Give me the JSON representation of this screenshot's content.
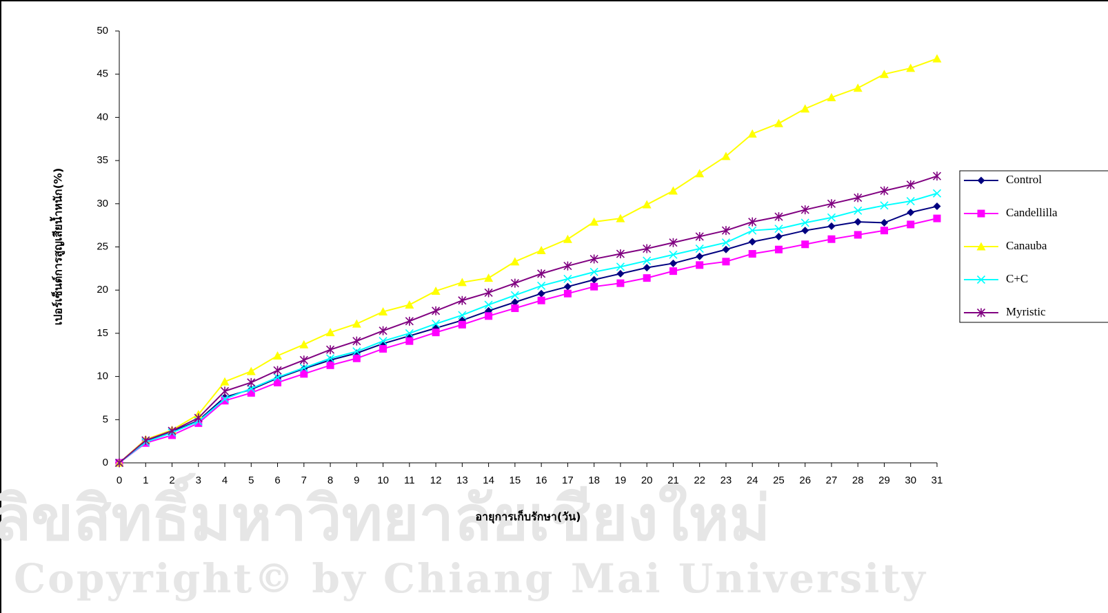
{
  "chart_data": {
    "type": "line",
    "watermark": [
      "ลิขสิทธิ์มหาวิทยาลัยเชียงใหม่",
      "Copyright© by Chiang Mai University"
    ],
    "x_label": "อายุการเก็บรักษา(วัน)",
    "y_label": "เปอร์เซ็นต์การสูญเสียน้ำหนัก(%)",
    "x": [
      0,
      1,
      2,
      3,
      4,
      5,
      6,
      7,
      8,
      9,
      10,
      11,
      12,
      13,
      14,
      15,
      16,
      17,
      18,
      19,
      20,
      21,
      22,
      23,
      24,
      25,
      26,
      27,
      28,
      29,
      30,
      31
    ],
    "xlim": [
      0,
      31
    ],
    "xticks": [
      0,
      1,
      2,
      3,
      4,
      5,
      6,
      7,
      8,
      9,
      10,
      11,
      12,
      13,
      14,
      15,
      16,
      17,
      18,
      19,
      20,
      21,
      22,
      23,
      24,
      25,
      26,
      27,
      28,
      29,
      30,
      31
    ],
    "ylim": [
      0,
      50
    ],
    "yticks": [
      0,
      5,
      10,
      15,
      20,
      25,
      30,
      35,
      40,
      45,
      50
    ],
    "legend": "right",
    "series": [
      {
        "name": "Control",
        "color": "#000080",
        "marker": "diamond",
        "values": [
          0,
          2.5,
          3.6,
          4.9,
          7.6,
          8.5,
          9.8,
          10.9,
          11.9,
          12.7,
          13.8,
          14.7,
          15.6,
          16.5,
          17.6,
          18.6,
          19.6,
          20.4,
          21.2,
          21.9,
          22.6,
          23.1,
          23.9,
          24.7,
          25.6,
          26.2,
          26.9,
          27.4,
          27.9,
          27.8,
          29.0,
          29.7
        ]
      },
      {
        "name": "Candellilla",
        "color": "#ff00ff",
        "marker": "square",
        "values": [
          0,
          2.3,
          3.2,
          4.6,
          7.2,
          8.1,
          9.3,
          10.3,
          11.3,
          12.1,
          13.2,
          14.1,
          15.1,
          16.0,
          17.0,
          17.9,
          18.8,
          19.6,
          20.4,
          20.8,
          21.4,
          22.2,
          22.9,
          23.3,
          24.2,
          24.7,
          25.3,
          25.9,
          26.4,
          26.9,
          27.6,
          28.3
        ]
      },
      {
        "name": "Canauba",
        "color": "#ffff00",
        "marker": "triangle",
        "values": [
          0,
          2.7,
          3.8,
          5.6,
          9.4,
          10.6,
          12.4,
          13.7,
          15.1,
          16.1,
          17.5,
          18.3,
          19.9,
          20.9,
          21.4,
          23.3,
          24.6,
          25.9,
          27.9,
          28.3,
          29.9,
          31.5,
          33.5,
          35.5,
          38.1,
          39.3,
          41.0,
          42.3,
          43.4,
          45.0,
          45.7,
          46.8
        ]
      },
      {
        "name": "C+C",
        "color": "#00ffff",
        "marker": "x",
        "values": [
          0,
          2.4,
          3.5,
          4.8,
          7.4,
          8.6,
          9.9,
          11.0,
          12.1,
          12.9,
          14.1,
          15.0,
          16.1,
          17.1,
          18.3,
          19.4,
          20.5,
          21.3,
          22.1,
          22.7,
          23.4,
          24.1,
          24.8,
          25.5,
          26.9,
          27.1,
          27.8,
          28.4,
          29.2,
          29.8,
          30.3,
          31.2
        ]
      },
      {
        "name": "Myristic",
        "color": "#800080",
        "marker": "star",
        "values": [
          0,
          2.6,
          3.7,
          5.2,
          8.3,
          9.3,
          10.7,
          11.9,
          13.1,
          14.1,
          15.3,
          16.4,
          17.6,
          18.8,
          19.7,
          20.8,
          21.9,
          22.8,
          23.6,
          24.2,
          24.8,
          25.5,
          26.2,
          26.9,
          27.9,
          28.5,
          29.3,
          30.0,
          30.7,
          31.5,
          32.2,
          33.2
        ]
      }
    ]
  }
}
